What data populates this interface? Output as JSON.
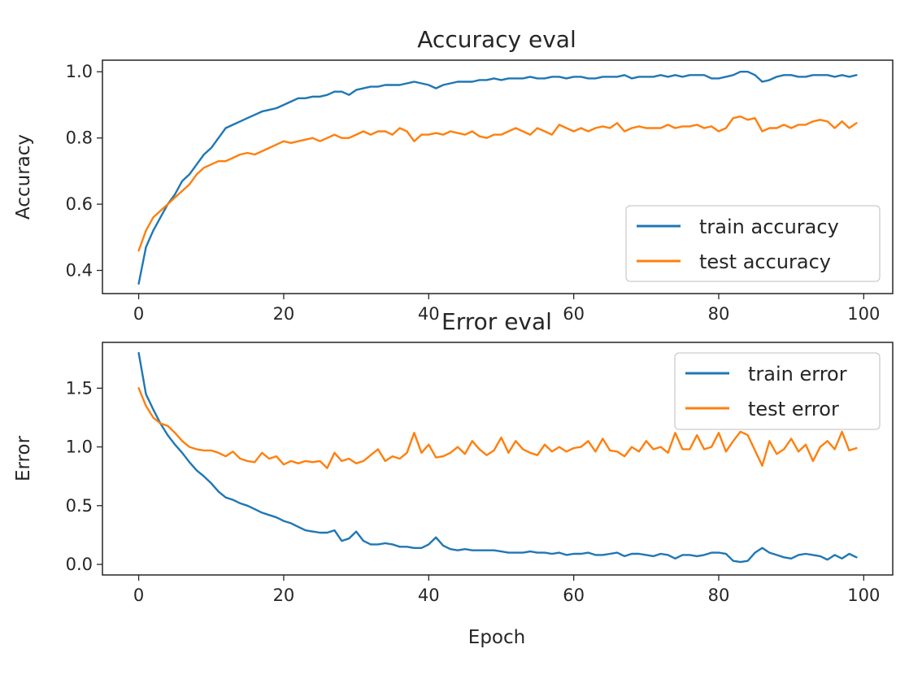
{
  "chart_data": [
    {
      "type": "line",
      "title": "Accuracy eval",
      "xlabel": "",
      "ylabel": "Accuracy",
      "xlim": [
        -5,
        104
      ],
      "ylim": [
        0.33,
        1.035
      ],
      "xticks": [
        0,
        20,
        40,
        60,
        80,
        100
      ],
      "yticks": [
        0.4,
        0.6,
        0.8,
        1.0
      ],
      "ytick_labels": [
        "0.4",
        "0.6",
        "0.8",
        "1.0"
      ],
      "legend_position": "lower right",
      "series": [
        {
          "name": "train accuracy",
          "color": "#1f77b4",
          "values": [
            0.36,
            0.47,
            0.52,
            0.56,
            0.6,
            0.63,
            0.67,
            0.69,
            0.72,
            0.75,
            0.77,
            0.8,
            0.83,
            0.84,
            0.85,
            0.86,
            0.87,
            0.88,
            0.885,
            0.89,
            0.9,
            0.91,
            0.92,
            0.92,
            0.925,
            0.925,
            0.93,
            0.94,
            0.94,
            0.93,
            0.945,
            0.95,
            0.955,
            0.955,
            0.96,
            0.96,
            0.96,
            0.965,
            0.97,
            0.965,
            0.96,
            0.95,
            0.96,
            0.965,
            0.97,
            0.97,
            0.97,
            0.975,
            0.975,
            0.98,
            0.975,
            0.98,
            0.98,
            0.98,
            0.985,
            0.98,
            0.98,
            0.985,
            0.985,
            0.98,
            0.985,
            0.985,
            0.98,
            0.98,
            0.985,
            0.985,
            0.985,
            0.99,
            0.98,
            0.985,
            0.985,
            0.985,
            0.99,
            0.985,
            0.99,
            0.985,
            0.99,
            0.99,
            0.99,
            0.98,
            0.98,
            0.985,
            0.99,
            1.0,
            1.0,
            0.99,
            0.97,
            0.975,
            0.985,
            0.99,
            0.99,
            0.985,
            0.985,
            0.99,
            0.99,
            0.99,
            0.985,
            0.99,
            0.985,
            0.99
          ]
        },
        {
          "name": "test accuracy",
          "color": "#ff7f0e",
          "values": [
            0.46,
            0.52,
            0.56,
            0.58,
            0.6,
            0.62,
            0.64,
            0.66,
            0.69,
            0.71,
            0.72,
            0.73,
            0.73,
            0.74,
            0.75,
            0.755,
            0.75,
            0.76,
            0.77,
            0.78,
            0.79,
            0.785,
            0.79,
            0.795,
            0.8,
            0.79,
            0.8,
            0.81,
            0.8,
            0.8,
            0.81,
            0.82,
            0.81,
            0.82,
            0.82,
            0.81,
            0.83,
            0.82,
            0.79,
            0.81,
            0.81,
            0.815,
            0.81,
            0.82,
            0.815,
            0.81,
            0.82,
            0.805,
            0.8,
            0.81,
            0.81,
            0.82,
            0.83,
            0.82,
            0.81,
            0.83,
            0.82,
            0.81,
            0.84,
            0.83,
            0.82,
            0.83,
            0.82,
            0.83,
            0.835,
            0.83,
            0.845,
            0.82,
            0.83,
            0.835,
            0.83,
            0.83,
            0.83,
            0.84,
            0.83,
            0.835,
            0.835,
            0.84,
            0.83,
            0.835,
            0.82,
            0.83,
            0.86,
            0.865,
            0.855,
            0.86,
            0.82,
            0.83,
            0.83,
            0.84,
            0.83,
            0.84,
            0.84,
            0.85,
            0.855,
            0.85,
            0.83,
            0.85,
            0.83,
            0.845
          ]
        }
      ]
    },
    {
      "type": "line",
      "title": "Error eval",
      "xlabel": "Epoch",
      "ylabel": "Error",
      "xlim": [
        -5,
        104
      ],
      "ylim": [
        -0.09,
        1.89
      ],
      "xticks": [
        0,
        20,
        40,
        60,
        80,
        100
      ],
      "yticks": [
        0.0,
        0.5,
        1.0,
        1.5
      ],
      "ytick_labels": [
        "0.0",
        "0.5",
        "1.0",
        "1.5"
      ],
      "legend_position": "upper right",
      "series": [
        {
          "name": "train error",
          "color": "#1f77b4",
          "values": [
            1.8,
            1.45,
            1.32,
            1.2,
            1.1,
            1.02,
            0.95,
            0.87,
            0.8,
            0.75,
            0.69,
            0.62,
            0.57,
            0.55,
            0.52,
            0.5,
            0.47,
            0.44,
            0.42,
            0.4,
            0.37,
            0.35,
            0.32,
            0.29,
            0.28,
            0.27,
            0.27,
            0.29,
            0.2,
            0.22,
            0.28,
            0.2,
            0.17,
            0.17,
            0.18,
            0.17,
            0.15,
            0.15,
            0.14,
            0.14,
            0.17,
            0.23,
            0.16,
            0.13,
            0.12,
            0.13,
            0.12,
            0.12,
            0.12,
            0.12,
            0.11,
            0.1,
            0.1,
            0.1,
            0.11,
            0.1,
            0.1,
            0.09,
            0.1,
            0.08,
            0.09,
            0.09,
            0.1,
            0.08,
            0.08,
            0.09,
            0.1,
            0.07,
            0.09,
            0.09,
            0.08,
            0.07,
            0.09,
            0.08,
            0.05,
            0.08,
            0.08,
            0.07,
            0.08,
            0.1,
            0.1,
            0.09,
            0.03,
            0.02,
            0.03,
            0.1,
            0.14,
            0.1,
            0.08,
            0.06,
            0.05,
            0.08,
            0.09,
            0.08,
            0.07,
            0.04,
            0.08,
            0.05,
            0.09,
            0.06
          ]
        },
        {
          "name": "test error",
          "color": "#ff7f0e",
          "values": [
            1.5,
            1.35,
            1.25,
            1.2,
            1.18,
            1.12,
            1.05,
            1.0,
            0.98,
            0.97,
            0.97,
            0.95,
            0.92,
            0.96,
            0.9,
            0.88,
            0.87,
            0.95,
            0.9,
            0.92,
            0.85,
            0.88,
            0.86,
            0.88,
            0.87,
            0.88,
            0.82,
            0.95,
            0.88,
            0.9,
            0.86,
            0.88,
            0.93,
            0.98,
            0.88,
            0.92,
            0.9,
            0.95,
            1.12,
            0.95,
            1.02,
            0.91,
            0.92,
            0.95,
            1.0,
            0.94,
            1.05,
            0.98,
            0.93,
            0.97,
            1.08,
            0.95,
            1.05,
            0.98,
            0.95,
            0.93,
            1.02,
            0.96,
            1.0,
            0.96,
            0.99,
            1.0,
            1.05,
            0.96,
            1.07,
            0.97,
            0.96,
            0.92,
            1.0,
            0.96,
            1.05,
            0.98,
            1.0,
            0.95,
            1.12,
            0.98,
            0.98,
            1.1,
            0.98,
            1.0,
            1.12,
            0.96,
            1.05,
            1.13,
            1.1,
            0.97,
            0.84,
            1.05,
            0.94,
            0.98,
            1.07,
            0.96,
            1.02,
            0.88,
            1.0,
            1.05,
            0.98,
            1.13,
            0.97,
            0.99
          ]
        }
      ]
    }
  ]
}
